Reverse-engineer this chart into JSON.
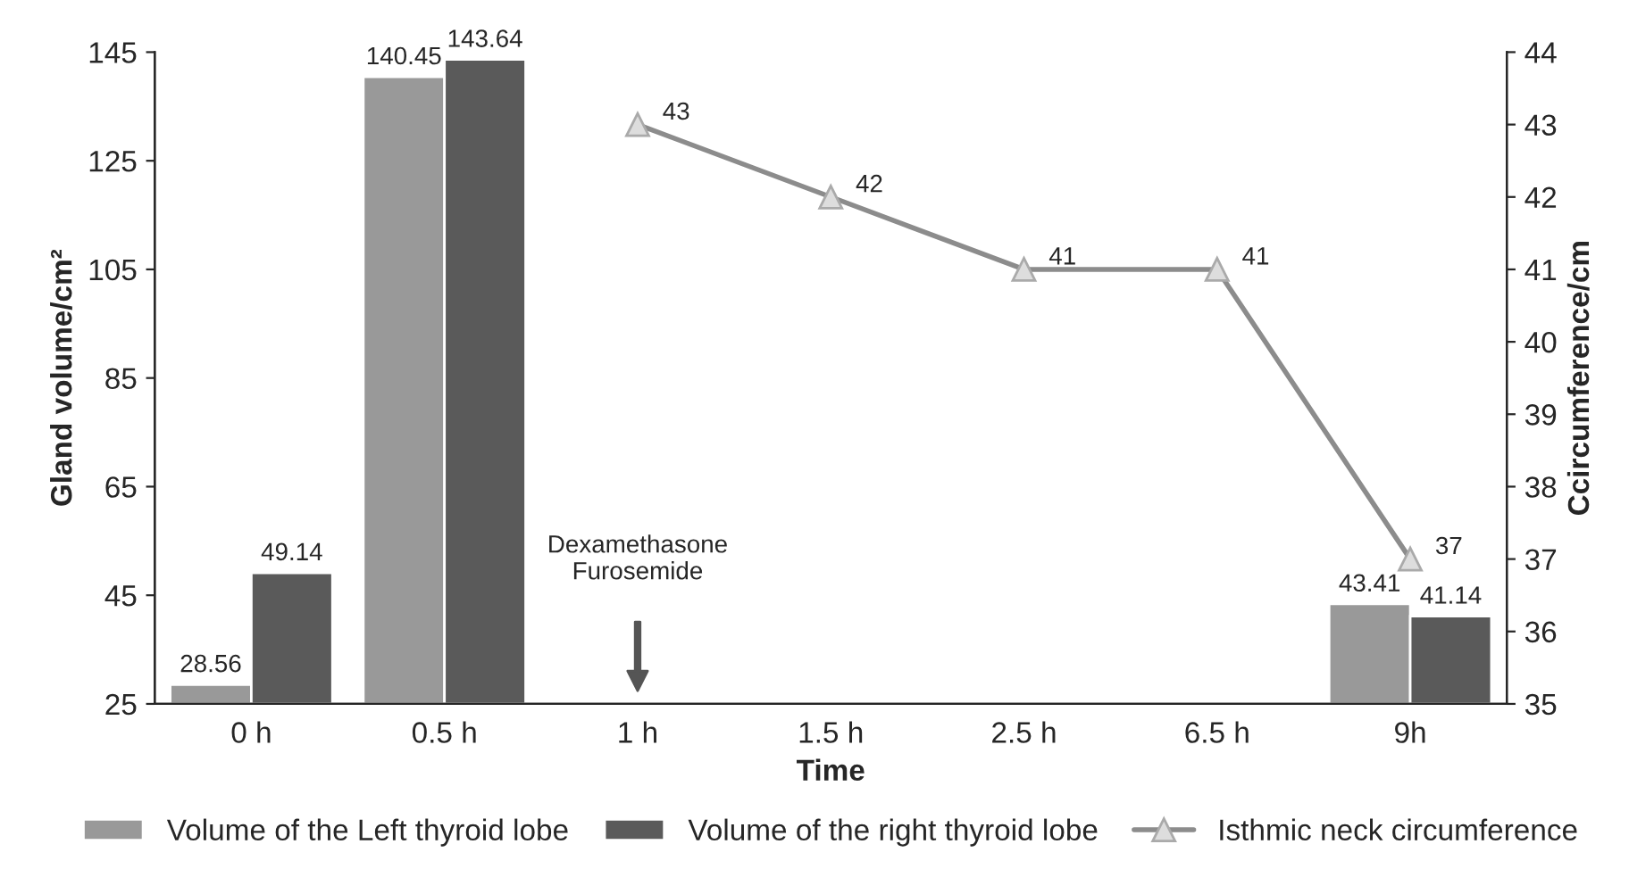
{
  "chart_data": {
    "type": "bar",
    "xlabel": "Time",
    "ylabel": "Gland volume/cm²",
    "y2label": "Ccircumference/cm",
    "categories": [
      "0 h",
      "0.5 h",
      "1 h",
      "1.5 h",
      "2.5 h",
      "6.5 h",
      "9h"
    ],
    "series": [
      {
        "name": "Volume of the Left thyroid lobe",
        "color": "#999999",
        "values": [
          28.56,
          140.45,
          null,
          null,
          null,
          null,
          43.41
        ]
      },
      {
        "name": "Volume of the right thyroid lobe",
        "color": "#5a5a5a",
        "values": [
          49.14,
          143.64,
          null,
          null,
          null,
          null,
          41.14
        ]
      },
      {
        "name": "Isthmic neck circumference",
        "type": "line",
        "axis": "y2",
        "color": "#8c8c8c",
        "marker": "triangle",
        "values": [
          null,
          null,
          43,
          42,
          41,
          41,
          37
        ]
      }
    ],
    "ylim": [
      25,
      145
    ],
    "yticks": [
      25,
      45,
      65,
      85,
      105,
      125,
      145
    ],
    "y2lim": [
      35,
      44
    ],
    "y2ticks": [
      35,
      36,
      37,
      38,
      39,
      40,
      41,
      42,
      43,
      44
    ],
    "annotations": [
      "Dexamethasone\nFurosemide"
    ],
    "data_labels": true,
    "grid": false,
    "legend": "bottom"
  }
}
